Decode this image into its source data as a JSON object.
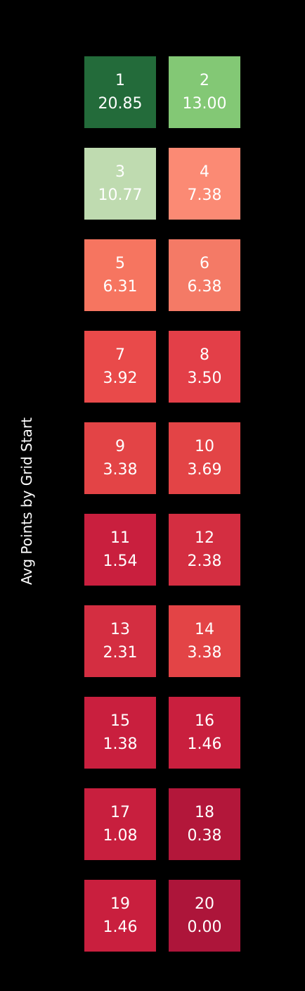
{
  "chart_data": {
    "type": "heatmap",
    "ylabel": "Avg Points by Grid Start",
    "cells": [
      {
        "label": "1",
        "value": 20.85,
        "text": "20.85",
        "color": "#236b3a"
      },
      {
        "label": "2",
        "value": 13.0,
        "text": "13.00",
        "color": "#83c875"
      },
      {
        "label": "3",
        "value": 10.77,
        "text": "10.77",
        "color": "#bfdbb0"
      },
      {
        "label": "4",
        "value": 7.38,
        "text": "7.38",
        "color": "#fb8a74"
      },
      {
        "label": "5",
        "value": 6.31,
        "text": "6.31",
        "color": "#f67560"
      },
      {
        "label": "6",
        "value": 6.38,
        "text": "6.38",
        "color": "#f47a66"
      },
      {
        "label": "7",
        "value": 3.92,
        "text": "3.92",
        "color": "#e94a4a"
      },
      {
        "label": "8",
        "value": 3.5,
        "text": "3.50",
        "color": "#e33f48"
      },
      {
        "label": "9",
        "value": 3.38,
        "text": "3.38",
        "color": "#e34446"
      },
      {
        "label": "10",
        "value": 3.69,
        "text": "3.69",
        "color": "#e34446"
      },
      {
        "label": "11",
        "value": 1.54,
        "text": "1.54",
        "color": "#c91f3e"
      },
      {
        "label": "12",
        "value": 2.38,
        "text": "2.38",
        "color": "#d42e41"
      },
      {
        "label": "13",
        "value": 2.31,
        "text": "2.31",
        "color": "#d42e41"
      },
      {
        "label": "14",
        "value": 3.38,
        "text": "3.38",
        "color": "#e34446"
      },
      {
        "label": "15",
        "value": 1.38,
        "text": "1.38",
        "color": "#c91f3e"
      },
      {
        "label": "16",
        "value": 1.46,
        "text": "1.46",
        "color": "#c91f3e"
      },
      {
        "label": "17",
        "value": 1.08,
        "text": "1.08",
        "color": "#c81f3e"
      },
      {
        "label": "18",
        "value": 0.38,
        "text": "0.38",
        "color": "#b3173a"
      },
      {
        "label": "19",
        "value": 1.46,
        "text": "1.46",
        "color": "#c91f3e"
      },
      {
        "label": "20",
        "value": 0.0,
        "text": "0.00",
        "color": "#ad153a"
      }
    ]
  }
}
